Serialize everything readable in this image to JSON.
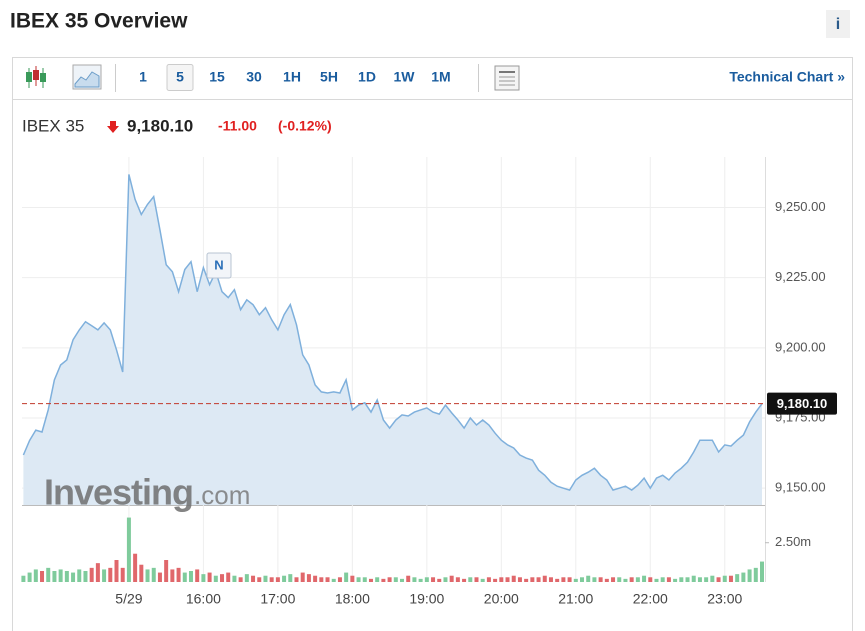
{
  "header": {
    "title": "IBEX 35 Overview",
    "info": "i"
  },
  "toolbar": {
    "intervals": [
      "1",
      "5",
      "15",
      "30",
      "1H",
      "5H",
      "1D",
      "1W",
      "1M"
    ],
    "selected": "5",
    "link": "Technical Chart »"
  },
  "quote": {
    "name": "IBEX 35",
    "last": "9,180.10",
    "change": "-11.00",
    "change_pct": "(-0.12%)"
  },
  "chart_data": {
    "type": "area",
    "categories": [
      null,
      null,
      null,
      null,
      null,
      null,
      null,
      null,
      null,
      null,
      null,
      null,
      null,
      null,
      null,
      null,
      null,
      "5/29",
      null,
      null,
      null,
      null,
      null,
      null,
      null,
      null,
      null,
      null,
      null,
      "16:00",
      null,
      null,
      null,
      null,
      null,
      null,
      null,
      null,
      null,
      null,
      null,
      "17:00",
      null,
      null,
      null,
      null,
      null,
      null,
      null,
      null,
      null,
      null,
      null,
      "18:00",
      null,
      null,
      null,
      null,
      null,
      null,
      null,
      null,
      null,
      null,
      null,
      "19:00",
      null,
      null,
      null,
      null,
      null,
      null,
      null,
      null,
      null,
      null,
      null,
      "20:00",
      null,
      null,
      null,
      null,
      null,
      null,
      null,
      null,
      null,
      null,
      null,
      "21:00",
      null,
      null,
      null,
      null,
      null,
      null,
      null,
      null,
      null,
      null,
      null,
      "22:00",
      null,
      null,
      null,
      null,
      null,
      null,
      null,
      null,
      null,
      null,
      null,
      "23:00",
      null,
      null,
      null,
      null,
      null,
      null
    ],
    "values": [
      9161.8,
      9167,
      9170.7,
      9170,
      9177.9,
      9188.6,
      9193.9,
      9195.7,
      9202.9,
      9206.4,
      9209.3,
      9207.9,
      9206.4,
      9208.9,
      9206.4,
      9199.3,
      9191.4,
      9261.8,
      9252.9,
      9247.5,
      9251.1,
      9253.9,
      9242.1,
      9229.6,
      9227.1,
      9220,
      9227.9,
      9230.7,
      9220,
      9228.6,
      9222.5,
      9227.1,
      9220,
      9217.9,
      9220.7,
      9213.6,
      9217.1,
      9215.4,
      9211.8,
      9214.3,
      9210,
      9206.4,
      9211.8,
      9215.4,
      9208.2,
      9197.5,
      9193.9,
      9186.8,
      9184.3,
      9183.9,
      9184.3,
      9183.9,
      9188.6,
      9177.9,
      9179.6,
      9180.4,
      9177.1,
      9181.4,
      9174.3,
      9171.4,
      9174.3,
      9176.1,
      9175.7,
      9177.1,
      9177.9,
      9178.6,
      9177.1,
      9176.4,
      9179.6,
      9176.8,
      9174.3,
      9171.4,
      9175,
      9172.5,
      9174.3,
      9172.5,
      9169.6,
      9167.1,
      9165.4,
      9164.3,
      9161.8,
      9160.7,
      9160,
      9156.4,
      9154.6,
      9152.1,
      9150.7,
      9150,
      9149.3,
      9152.9,
      9154.6,
      9155.7,
      9157.1,
      9154.6,
      9152.9,
      9149.3,
      9150,
      9150.7,
      9149.3,
      9151.1,
      9153.6,
      9150,
      9153.6,
      9154.6,
      9152.9,
      9155.4,
      9157.1,
      9159.3,
      9162.9,
      9167.1,
      9167.1,
      9167.1,
      9162.9,
      9165.4,
      9165,
      9167.1,
      9168.9,
      9173.6,
      9177.1,
      9180.1
    ],
    "color": "#7fb0dc",
    "fill": "#dde9f4",
    "ylim": [
      9144,
      9268
    ],
    "yticks": [
      {
        "value": 9150,
        "label": "9,150.00"
      },
      {
        "value": 9175,
        "label": "9,175.00"
      },
      {
        "value": 9200,
        "label": "9,200.00"
      },
      {
        "value": 9225,
        "label": "9,225.00"
      },
      {
        "value": 9250,
        "label": "9,250.00"
      }
    ],
    "grid": true,
    "last_line_color": "#c0392b",
    "annotations": [
      {
        "label": "N"
      }
    ],
    "watermark": [
      "Investing",
      ".com"
    ],
    "volume": {
      "values": [
        0.4,
        0.6,
        0.8,
        0.7,
        0.9,
        0.7,
        0.8,
        0.7,
        0.6,
        0.8,
        0.7,
        0.9,
        1.2,
        0.8,
        0.9,
        1.4,
        0.9,
        4.1,
        1.8,
        1.1,
        0.8,
        0.9,
        0.6,
        1.4,
        0.8,
        0.9,
        0.6,
        0.7,
        0.8,
        0.5,
        0.6,
        0.4,
        0.5,
        0.6,
        0.4,
        0.3,
        0.5,
        0.4,
        0.3,
        0.4,
        0.3,
        0.3,
        0.4,
        0.5,
        0.3,
        0.6,
        0.5,
        0.4,
        0.3,
        0.3,
        0.2,
        0.3,
        0.6,
        0.4,
        0.3,
        0.3,
        0.2,
        0.3,
        0.2,
        0.3,
        0.3,
        0.2,
        0.4,
        0.3,
        0.2,
        0.3,
        0.3,
        0.2,
        0.3,
        0.4,
        0.3,
        0.2,
        0.3,
        0.3,
        0.2,
        0.3,
        0.2,
        0.3,
        0.3,
        0.4,
        0.3,
        0.2,
        0.3,
        0.3,
        0.4,
        0.3,
        0.2,
        0.3,
        0.3,
        0.2,
        0.3,
        0.4,
        0.3,
        0.3,
        0.2,
        0.3,
        0.3,
        0.2,
        0.3,
        0.3,
        0.4,
        0.3,
        0.2,
        0.3,
        0.3,
        0.2,
        0.3,
        0.3,
        0.4,
        0.3,
        0.3,
        0.4,
        0.3,
        0.4,
        0.4,
        0.5,
        0.6,
        0.8,
        0.9,
        1.3
      ],
      "ylim": [
        0,
        4.9
      ],
      "yticks": [
        {
          "value": 2.5,
          "label": "2.50m"
        }
      ],
      "up_color": "#7fcb9c",
      "down_color": "#e0676b"
    }
  }
}
